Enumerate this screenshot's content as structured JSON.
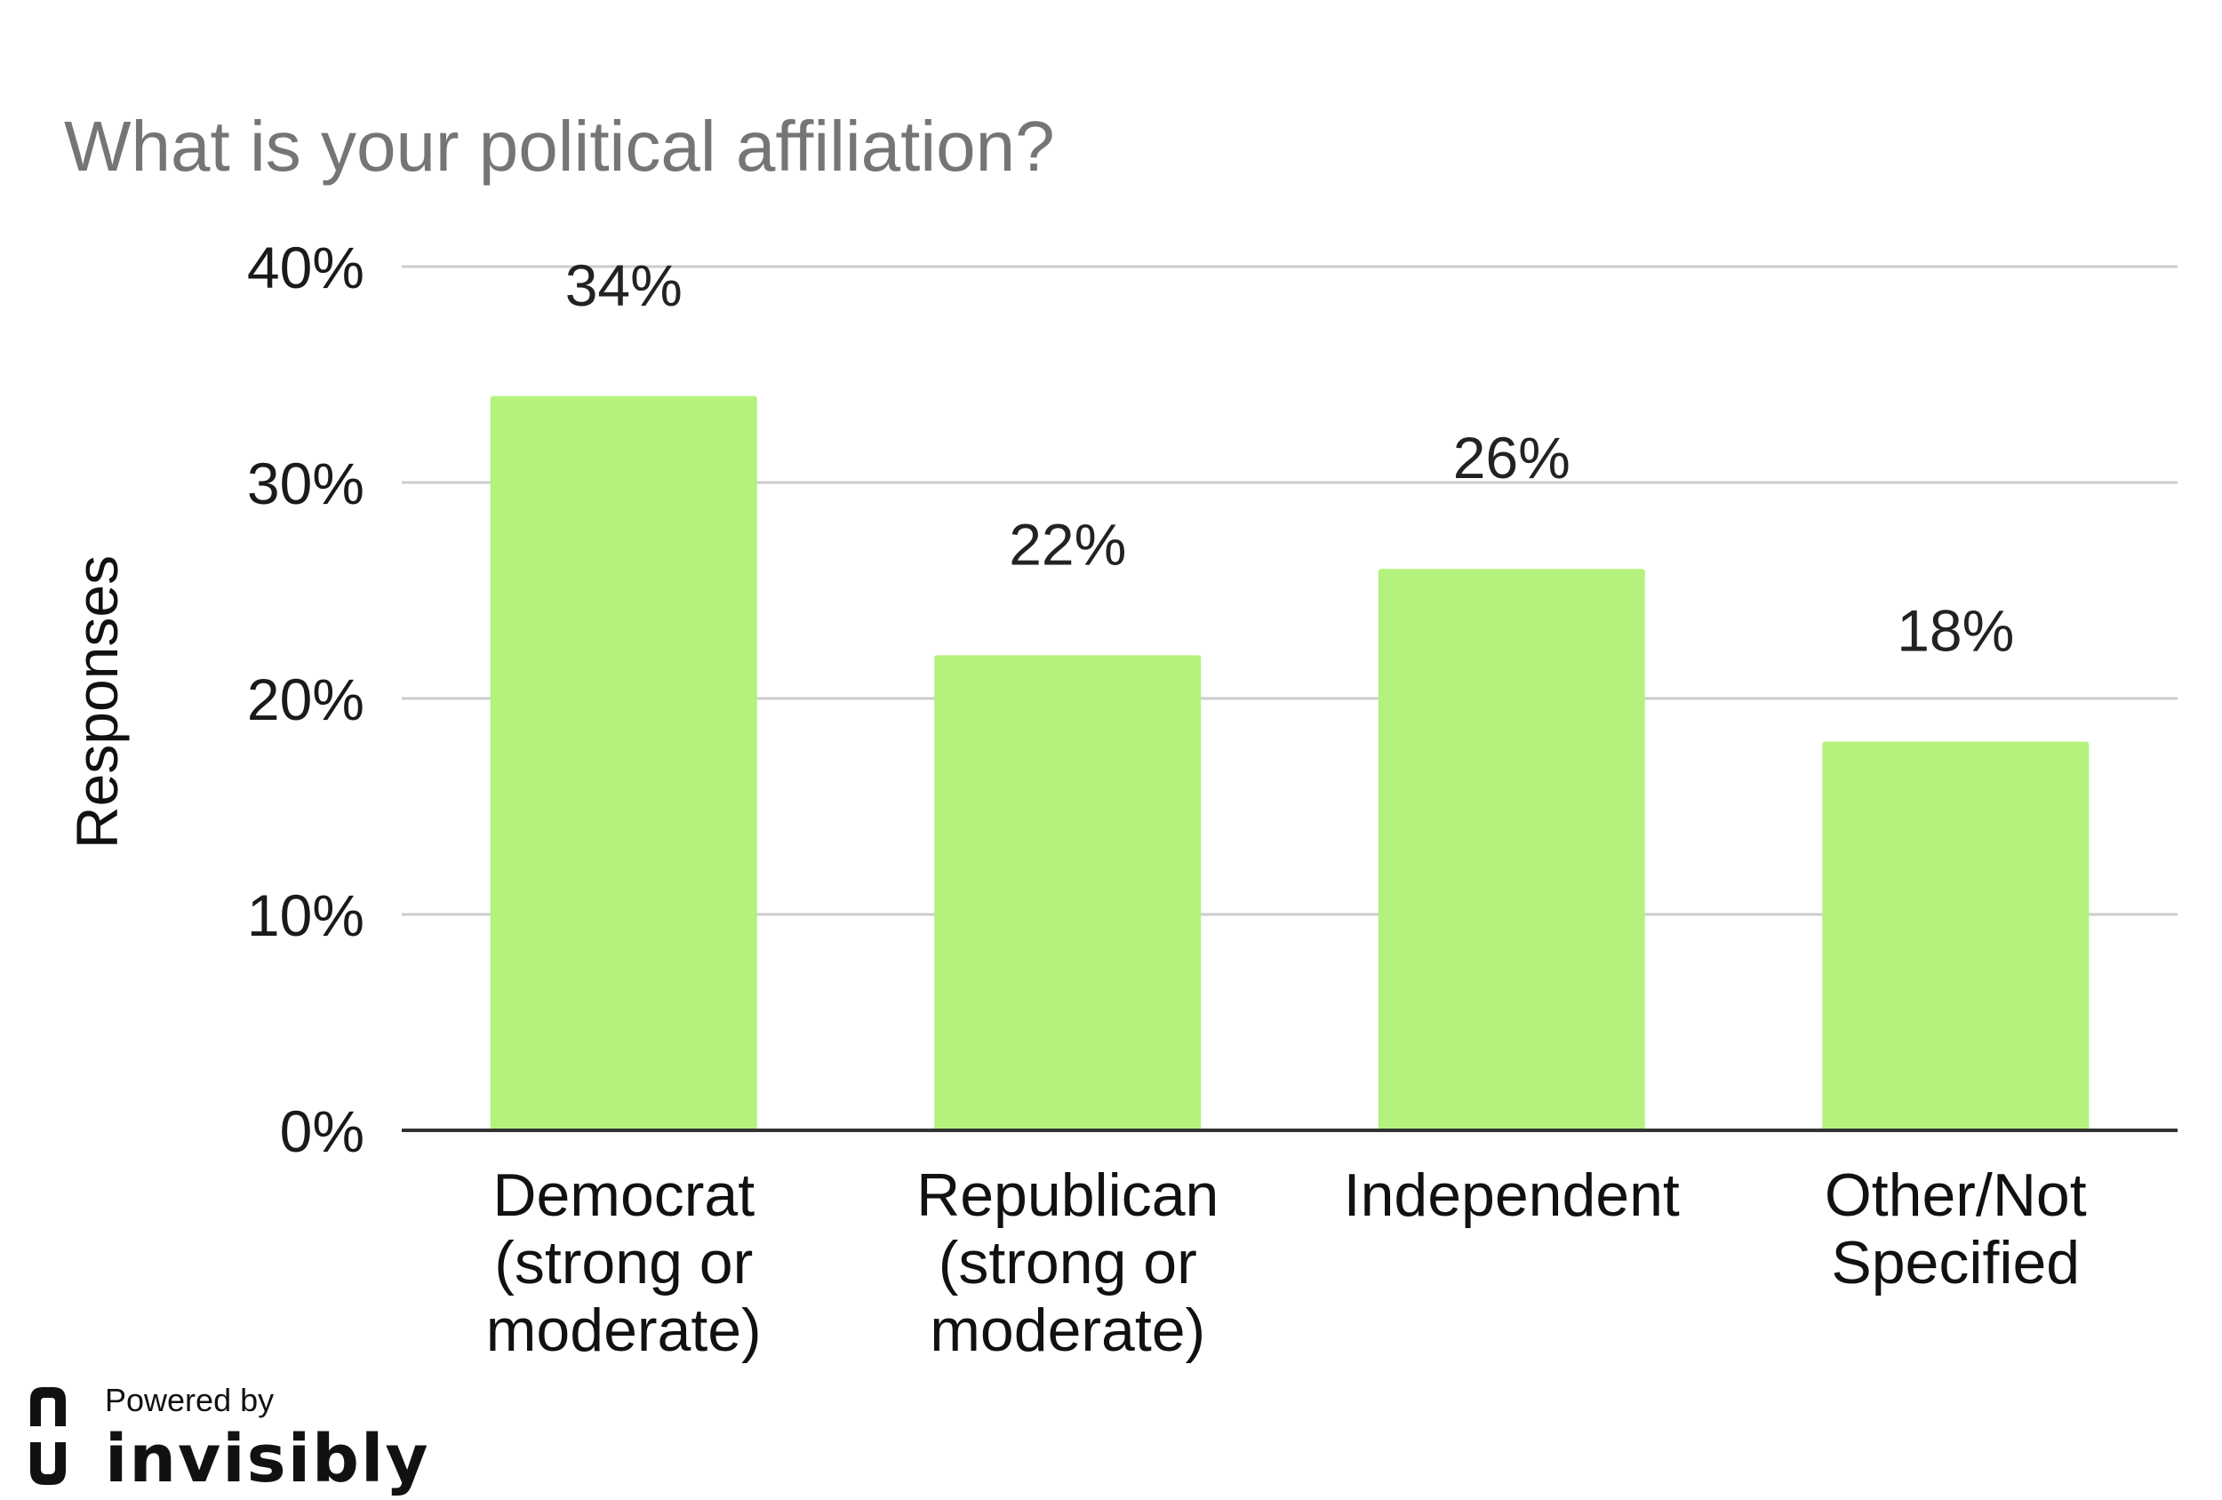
{
  "chart_data": {
    "type": "bar",
    "title": "What is your political affiliation?",
    "xlabel": "",
    "ylabel": "Responses",
    "categories": [
      [
        "Democrat",
        "(strong or",
        "moderate)"
      ],
      [
        "Republican",
        "(strong or",
        "moderate)"
      ],
      [
        "Independent"
      ],
      [
        "Other/Not",
        "Specified"
      ]
    ],
    "values": [
      34,
      22,
      26,
      18
    ],
    "data_labels": [
      "34%",
      "22%",
      "26%",
      "18%"
    ],
    "ylim": [
      0,
      40
    ],
    "yticks": [
      0,
      10,
      20,
      30,
      40
    ],
    "ytick_labels": [
      "0%",
      "10%",
      "20%",
      "30%",
      "40%"
    ],
    "grid": true,
    "bar_color": "#b3f27c"
  },
  "branding": {
    "powered_by": "Powered by",
    "name": "invisibly"
  }
}
